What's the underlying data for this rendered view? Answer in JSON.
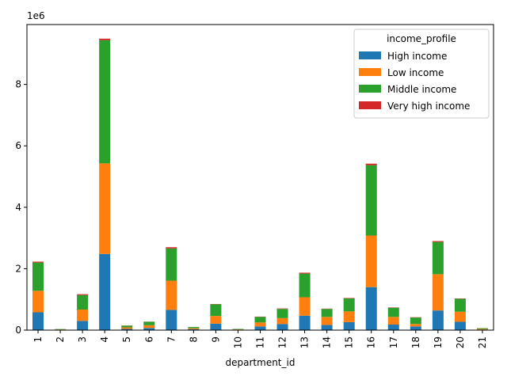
{
  "chart_data": {
    "type": "bar",
    "stacked": true,
    "title": "",
    "xlabel": "department_id",
    "ylabel": "",
    "y_offset_label": "1e6",
    "ylim": [
      0,
      9950000
    ],
    "yticks": [
      0,
      2000000,
      4000000,
      6000000,
      8000000
    ],
    "ytick_labels": [
      "0",
      "2",
      "4",
      "6",
      "8"
    ],
    "grid": false,
    "legend_title": "income_profile",
    "legend_position": "top-right",
    "categories": [
      "1",
      "2",
      "3",
      "4",
      "5",
      "6",
      "7",
      "8",
      "9",
      "10",
      "11",
      "12",
      "13",
      "14",
      "15",
      "16",
      "17",
      "18",
      "19",
      "20",
      "21"
    ],
    "series": [
      {
        "name": "High income",
        "color": "#1f77b4",
        "values": [
          580000,
          9000,
          300000,
          2480000,
          40000,
          70000,
          660000,
          30000,
          210000,
          10000,
          120000,
          200000,
          470000,
          170000,
          260000,
          1400000,
          180000,
          120000,
          640000,
          270000,
          18000
        ]
      },
      {
        "name": "Low income",
        "color": "#ff7f0e",
        "values": [
          700000,
          11000,
          370000,
          2950000,
          50000,
          90000,
          950000,
          30000,
          250000,
          12000,
          130000,
          190000,
          600000,
          260000,
          350000,
          1680000,
          250000,
          80000,
          1180000,
          330000,
          20000
        ]
      },
      {
        "name": "Middle income",
        "color": "#2ca02c",
        "values": [
          920000,
          14000,
          470000,
          4010000,
          55000,
          110000,
          1050000,
          40000,
          380000,
          16000,
          180000,
          300000,
          770000,
          260000,
          420000,
          2290000,
          300000,
          210000,
          1050000,
          420000,
          25000
        ]
      },
      {
        "name": "Very high income",
        "color": "#d62728",
        "values": [
          30000,
          1000,
          30000,
          50000,
          5000,
          5000,
          40000,
          2000,
          10000,
          1000,
          10000,
          15000,
          30000,
          10000,
          15000,
          50000,
          10000,
          10000,
          30000,
          10000,
          1000
        ]
      }
    ]
  }
}
